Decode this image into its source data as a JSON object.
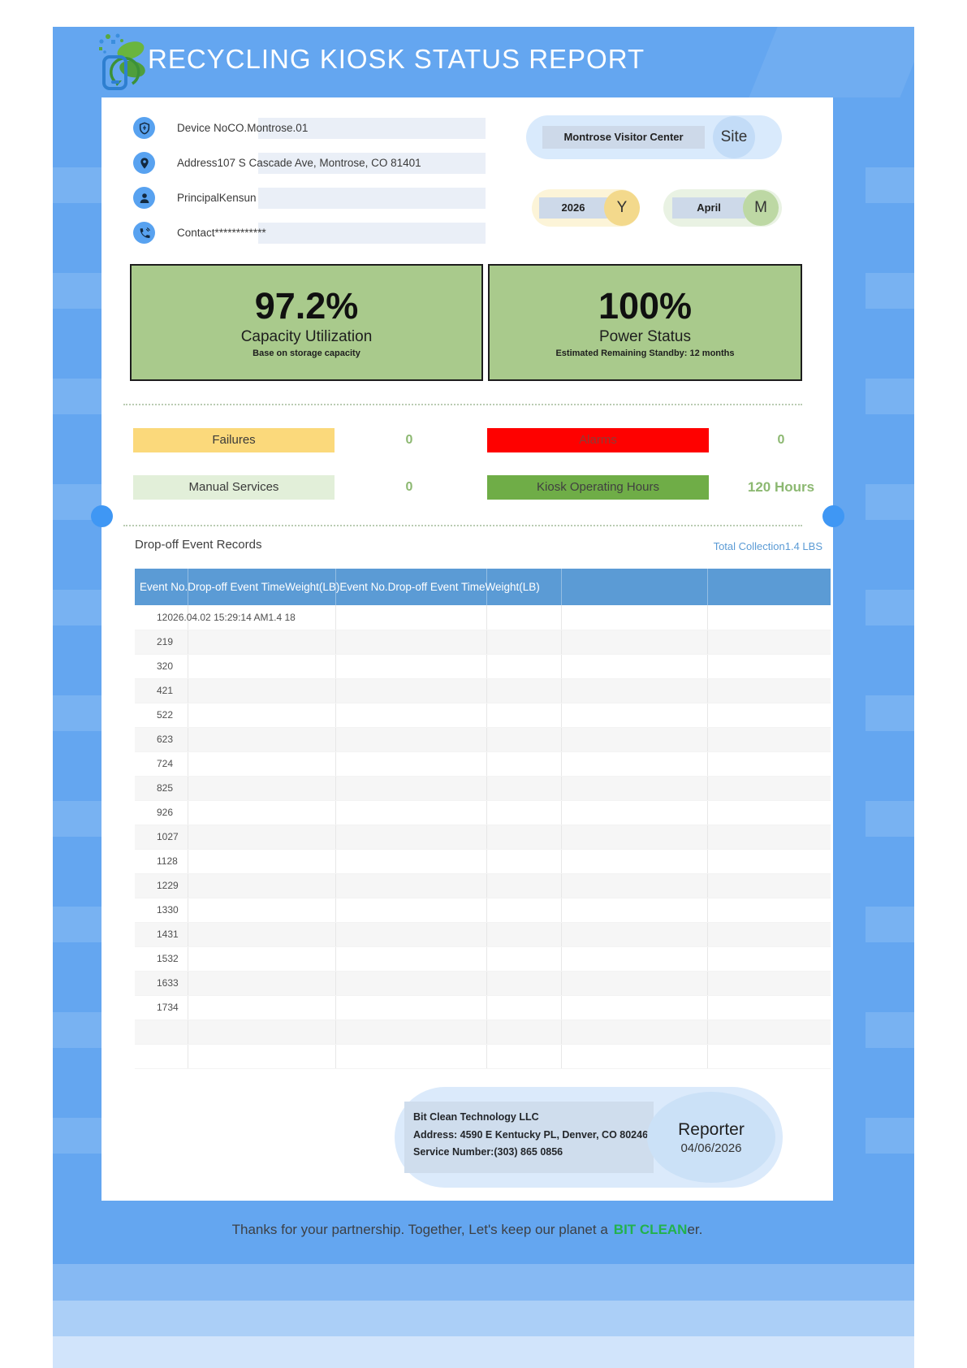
{
  "report": {
    "title": "RECYCLING KIOSK STATUS REPORT"
  },
  "device_info": [
    {
      "icon": "shield-icon",
      "label": "Device No",
      "value": "CO.Montrose.01"
    },
    {
      "icon": "map-pin-icon",
      "label": "Address",
      "value": "107 S Cascade Ave, Montrose, CO 81401"
    },
    {
      "icon": "person-icon",
      "label": "Principal",
      "value": "Kensun"
    },
    {
      "icon": "phone-icon",
      "label": "Contact",
      "value": "************"
    }
  ],
  "site": {
    "name": "Montrose Visitor Center",
    "badge": "Site"
  },
  "period": {
    "year": "2026",
    "year_badge": "Y",
    "month": "April",
    "month_badge": "M"
  },
  "stats": [
    {
      "value": "97.2%",
      "label": "Capacity Utilization",
      "note": "Base on storage capacity"
    },
    {
      "value": "100%",
      "label": "Power Status",
      "note": "Estimated Remaining Standby: 12 months"
    }
  ],
  "status": {
    "failures": {
      "label": "Failures",
      "value": "0"
    },
    "alarms": {
      "label": "Alarms",
      "value": "0"
    },
    "manual": {
      "label": "Manual Services",
      "value": "0"
    },
    "hours": {
      "label": "Kiosk Operating Hours",
      "value": "120 Hours"
    }
  },
  "records": {
    "heading": "Drop-off Event Records",
    "total_label": "Total Collection",
    "total_value": "1.4 LBS",
    "columns": [
      "Event No.",
      "Drop-off Event Time",
      "Weight(LB)",
      "Event No.",
      "Drop-off Event Time",
      "Weight(LB)"
    ],
    "rows": [
      "12026.04.02 15:29:14 AM1.4 18",
      "219",
      "320",
      "421",
      "522",
      "623",
      "724",
      "825",
      "926",
      "1027",
      "1128",
      "1229",
      "1330",
      "1431",
      "1532",
      "1633",
      "1734",
      "",
      ""
    ]
  },
  "footer": {
    "company": "Bit Clean Technology LLC",
    "address": "Address: 4590 E Kentucky PL, Denver, CO 80246",
    "service": "Service Number:(303) 865 0856",
    "reporter_label": "Reporter",
    "report_date": "04/06/2026"
  },
  "thanks": {
    "prefix": "Thanks for your partnership. Together, Let's keep our planet a",
    "highlight": "BIT CLEAN",
    "suffix": "er."
  },
  "colors": {
    "header_blue": "#64a6f0",
    "table_head": "#5b9bd5",
    "stat_green": "#a9ca8c",
    "failures_yellow": "#fbd97b",
    "alarm_red": "#fe0100",
    "manual_green": "#e2efd9",
    "hours_green": "#6fad47",
    "value_green": "#8cb871",
    "total_blue": "#5b9bd5",
    "highlight_green": "#22b24c",
    "field_bg": "#eaeff7"
  }
}
